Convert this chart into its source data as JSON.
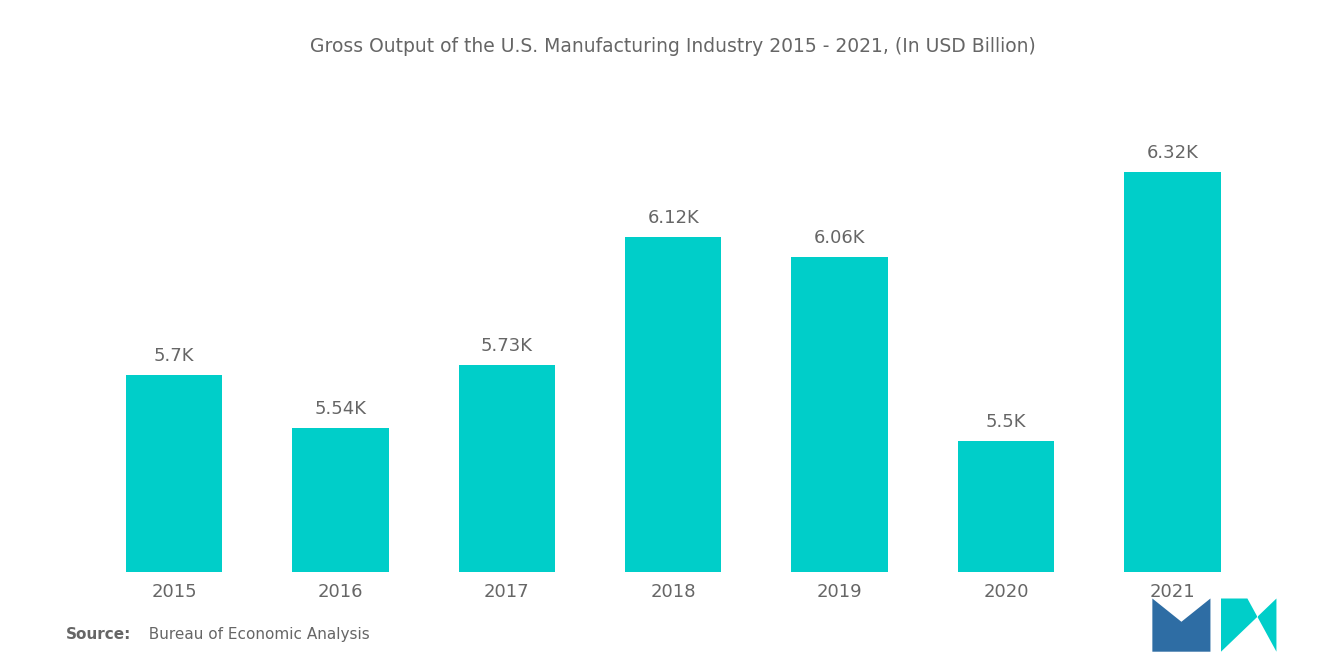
{
  "title": "Gross Output of the U.S. Manufacturing Industry 2015 - 2021, (In USD Billion)",
  "categories": [
    "2015",
    "2016",
    "2017",
    "2018",
    "2019",
    "2020",
    "2021"
  ],
  "values": [
    5700,
    5540,
    5730,
    6120,
    6060,
    5500,
    6320
  ],
  "labels": [
    "5.7K",
    "5.54K",
    "5.73K",
    "6.12K",
    "6.06K",
    "5.5K",
    "6.32K"
  ],
  "bar_color": "#00CEC9",
  "background_color": "#FFFFFF",
  "title_fontsize": 13.5,
  "label_fontsize": 13,
  "tick_fontsize": 13,
  "ylim_min": 5100,
  "ylim_max": 6600,
  "bar_width": 0.58,
  "logo_blue": "#2E6DA4",
  "logo_teal": "#00CEC9",
  "text_color": "#666666"
}
